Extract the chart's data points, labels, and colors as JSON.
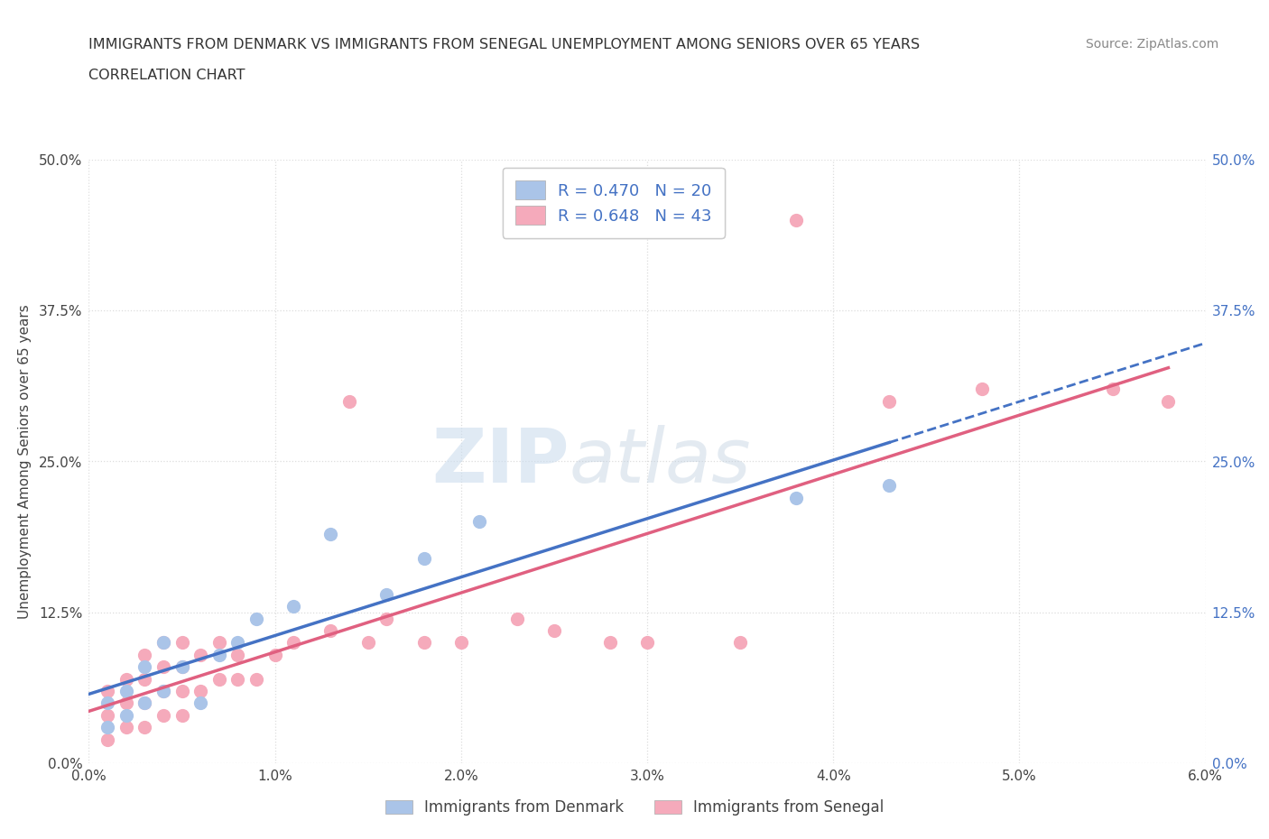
{
  "title_line1": "IMMIGRANTS FROM DENMARK VS IMMIGRANTS FROM SENEGAL UNEMPLOYMENT AMONG SENIORS OVER 65 YEARS",
  "title_line2": "CORRELATION CHART",
  "source": "Source: ZipAtlas.com",
  "ylabel": "Unemployment Among Seniors over 65 years",
  "legend_label1": "Immigrants from Denmark",
  "legend_label2": "Immigrants from Senegal",
  "r1": 0.47,
  "n1": 20,
  "r2": 0.648,
  "n2": 43,
  "color_denmark": "#aac4e8",
  "color_senegal": "#f5aabb",
  "line_color_denmark": "#4472c4",
  "line_color_senegal": "#e06080",
  "watermark_zip": "ZIP",
  "watermark_atlas": "atlas",
  "xlim": [
    0.0,
    0.06
  ],
  "ylim": [
    0.0,
    0.5
  ],
  "xticks": [
    0.0,
    0.01,
    0.02,
    0.03,
    0.04,
    0.05,
    0.06
  ],
  "yticks": [
    0.0,
    0.125,
    0.25,
    0.375,
    0.5
  ],
  "xtick_labels": [
    "0.0%",
    "1.0%",
    "2.0%",
    "3.0%",
    "4.0%",
    "5.0%",
    "6.0%"
  ],
  "ytick_labels": [
    "0.0%",
    "12.5%",
    "25.0%",
    "37.5%",
    "50.0%"
  ],
  "denmark_x": [
    0.001,
    0.001,
    0.002,
    0.002,
    0.003,
    0.003,
    0.004,
    0.004,
    0.005,
    0.006,
    0.007,
    0.008,
    0.009,
    0.011,
    0.013,
    0.016,
    0.018,
    0.021,
    0.038,
    0.043
  ],
  "denmark_y": [
    0.03,
    0.05,
    0.04,
    0.06,
    0.05,
    0.08,
    0.06,
    0.1,
    0.08,
    0.05,
    0.09,
    0.1,
    0.12,
    0.13,
    0.19,
    0.14,
    0.17,
    0.2,
    0.22,
    0.23
  ],
  "senegal_x": [
    0.001,
    0.001,
    0.001,
    0.002,
    0.002,
    0.002,
    0.003,
    0.003,
    0.003,
    0.003,
    0.004,
    0.004,
    0.004,
    0.004,
    0.005,
    0.005,
    0.005,
    0.005,
    0.006,
    0.006,
    0.007,
    0.007,
    0.008,
    0.008,
    0.009,
    0.01,
    0.011,
    0.013,
    0.014,
    0.015,
    0.016,
    0.018,
    0.02,
    0.023,
    0.025,
    0.028,
    0.03,
    0.035,
    0.038,
    0.043,
    0.048,
    0.055,
    0.058
  ],
  "senegal_y": [
    0.02,
    0.04,
    0.06,
    0.03,
    0.05,
    0.07,
    0.03,
    0.05,
    0.07,
    0.09,
    0.04,
    0.06,
    0.08,
    0.1,
    0.04,
    0.06,
    0.08,
    0.1,
    0.06,
    0.09,
    0.07,
    0.1,
    0.07,
    0.09,
    0.07,
    0.09,
    0.1,
    0.11,
    0.3,
    0.1,
    0.12,
    0.1,
    0.1,
    0.12,
    0.11,
    0.1,
    0.1,
    0.1,
    0.45,
    0.3,
    0.31,
    0.31,
    0.3
  ],
  "title_fontsize": 11.5,
  "tick_fontsize": 11,
  "ylabel_fontsize": 11,
  "source_fontsize": 10
}
